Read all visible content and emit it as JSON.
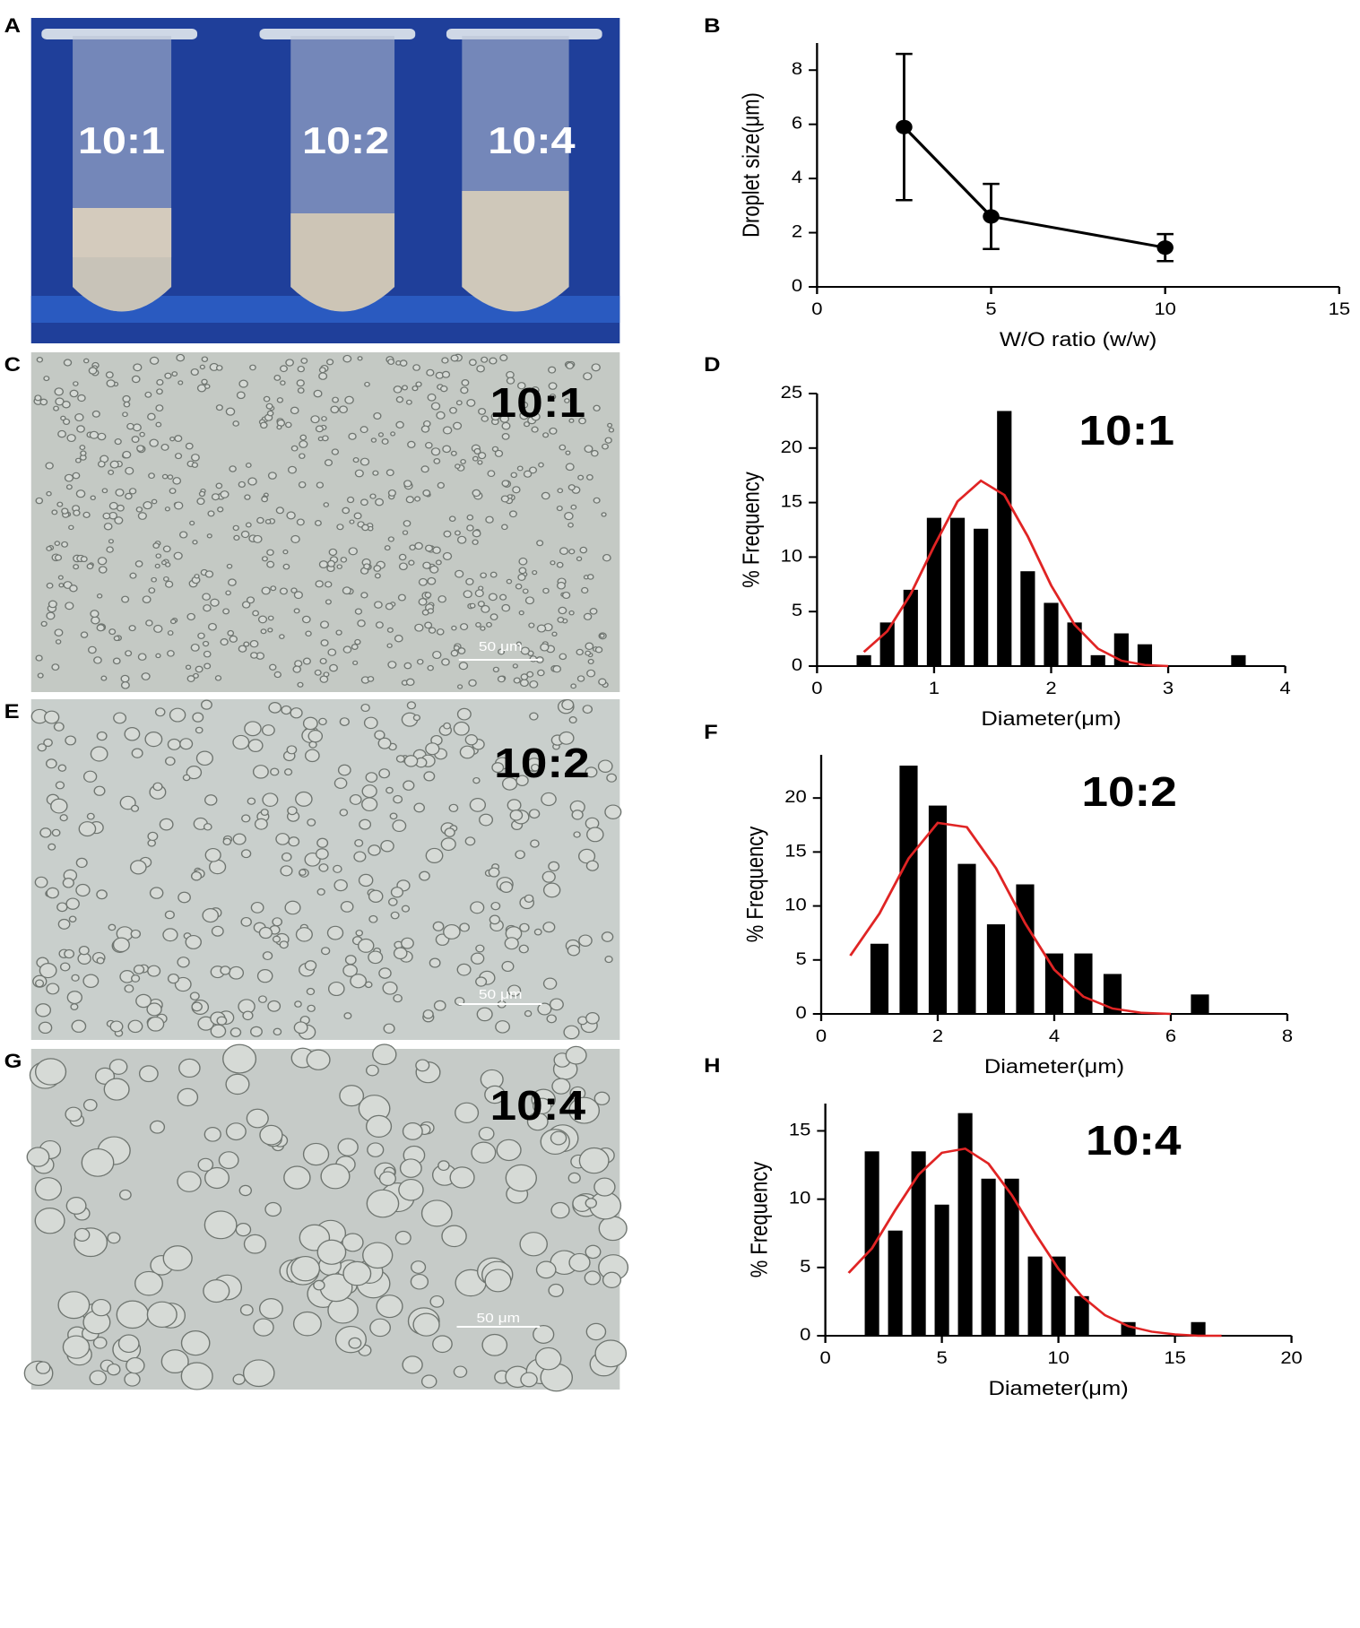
{
  "panels": [
    {
      "letter": "A",
      "labels": [
        "10:1",
        "10:2",
        "10:4"
      ]
    },
    {
      "letter": "C",
      "label": "10:1",
      "scale": "50 μm"
    },
    {
      "letter": "E",
      "label": "10:2",
      "scale": "50 μm"
    },
    {
      "letter": "G",
      "label": "10:4",
      "scale": "50 μm"
    }
  ],
  "chart_data": [
    {
      "type": "line",
      "letter": "B",
      "x_label": "W/O ratio (w/w)",
      "y_label": "Droplet  size(μm)",
      "x": [
        2.5,
        5,
        10
      ],
      "values": [
        5.9,
        2.6,
        1.45
      ],
      "errors": [
        2.7,
        1.2,
        0.5
      ],
      "color": "#000000",
      "xlim": [
        0,
        15
      ],
      "xticks": [
        0,
        5,
        10,
        15
      ],
      "ylim": [
        0,
        9
      ],
      "yticks": [
        0,
        2,
        4,
        6,
        8
      ]
    },
    {
      "type": "histogram",
      "letter": "D",
      "annotation": "10:1",
      "x_label": "Diameter(μm)",
      "y_label": "% Frequency",
      "color": "#000000",
      "bins": [
        0.3,
        0.5,
        0.7,
        0.9,
        1.1,
        1.3,
        1.5,
        1.7,
        1.9,
        2.1,
        2.3,
        2.5,
        2.7,
        2.9,
        3.1,
        3.3,
        3.5,
        3.7
      ],
      "values": [
        1,
        4,
        7,
        13.6,
        13.6,
        12.6,
        23.4,
        8.7,
        5.8,
        4,
        1,
        3,
        2,
        0,
        0,
        0,
        1
      ],
      "fit": {
        "color": "#e02424",
        "x": [
          0.4,
          0.6,
          0.8,
          1.0,
          1.2,
          1.4,
          1.6,
          1.8,
          2.0,
          2.2,
          2.4,
          2.6,
          2.8,
          3.0
        ],
        "values": [
          1.3,
          3.2,
          6.6,
          11.0,
          15.1,
          17.0,
          15.7,
          11.9,
          7.4,
          3.8,
          1.6,
          0.5,
          0.1,
          0
        ]
      },
      "xlim": [
        0,
        4
      ],
      "xticks": [
        0,
        1,
        2,
        3,
        4
      ],
      "ylim": [
        0,
        25
      ],
      "yticks": [
        0,
        5,
        10,
        15,
        20,
        25
      ]
    },
    {
      "type": "histogram",
      "letter": "F",
      "annotation": "10:2",
      "x_label": "Diameter(μm)",
      "y_label": "% Frequency",
      "color": "#000000",
      "bins": [
        0.75,
        1.25,
        1.75,
        2.25,
        2.75,
        3.25,
        3.75,
        4.25,
        4.75,
        5.25,
        5.75,
        6.25,
        6.75
      ],
      "values": [
        6.5,
        23,
        19.3,
        13.9,
        8.3,
        12,
        5.6,
        5.6,
        3.7,
        0,
        0,
        1.8
      ],
      "fit": {
        "color": "#e02424",
        "x": [
          0.5,
          1,
          1.5,
          2,
          2.5,
          3,
          3.5,
          4,
          4.5,
          5,
          5.5,
          6
        ],
        "values": [
          5.4,
          9.3,
          14.4,
          17.7,
          17.3,
          13.5,
          8.4,
          4.1,
          1.6,
          0.5,
          0.1,
          0
        ]
      },
      "xlim": [
        0,
        8
      ],
      "xticks": [
        0,
        2,
        4,
        6,
        8
      ],
      "ylim": [
        0,
        24
      ],
      "yticks": [
        0,
        5,
        10,
        15,
        20
      ]
    },
    {
      "type": "histogram",
      "letter": "H",
      "annotation": "10:4",
      "x_label": "Diameter(μm)",
      "y_label": "% Frequency",
      "color": "#000000",
      "bins": [
        1.5,
        2.5,
        3.5,
        4.5,
        5.5,
        6.5,
        7.5,
        8.5,
        9.5,
        10.5,
        11.5,
        12.5,
        13.5,
        14.5,
        15.5,
        16.5
      ],
      "values": [
        13.5,
        7.7,
        13.5,
        9.6,
        16.3,
        11.5,
        11.5,
        5.8,
        5.8,
        2.9,
        0,
        1,
        0,
        0,
        1
      ],
      "fit": {
        "color": "#e02424",
        "x": [
          1,
          2,
          3,
          4,
          5,
          6,
          7,
          8,
          9,
          10,
          11,
          12,
          13,
          14,
          15,
          16,
          17
        ],
        "values": [
          4.6,
          6.4,
          9.2,
          11.8,
          13.4,
          13.7,
          12.6,
          10.3,
          7.5,
          4.9,
          2.9,
          1.5,
          0.7,
          0.3,
          0.1,
          0,
          0
        ]
      },
      "xlim": [
        0,
        20
      ],
      "xticks": [
        0,
        5,
        10,
        15,
        20
      ],
      "ylim": [
        0,
        17
      ],
      "yticks": [
        0,
        5,
        10,
        15
      ]
    }
  ]
}
